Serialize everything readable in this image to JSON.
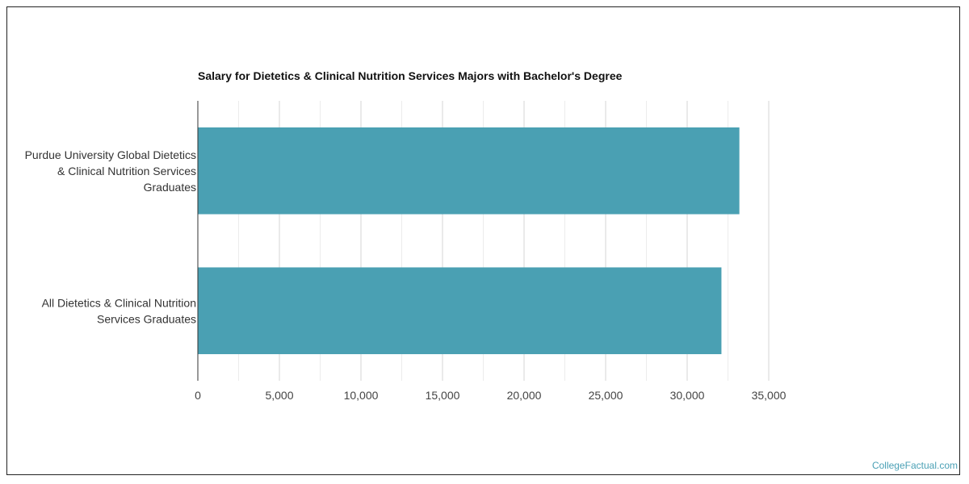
{
  "chart_data": {
    "type": "bar",
    "orientation": "horizontal",
    "title": "Salary for Dietetics & Clinical Nutrition Services Majors with Bachelor's Degree",
    "categories": [
      [
        "Purdue University Global Dietetics",
        "& Clinical Nutrition Services",
        "Graduates"
      ],
      [
        "All Dietetics & Clinical Nutrition",
        "Services Graduates"
      ]
    ],
    "values": [
      33200,
      32100
    ],
    "xlim": [
      0,
      35000
    ],
    "ticks": [
      "0",
      "5,000",
      "10,000",
      "15,000",
      "20,000",
      "25,000",
      "30,000",
      "35,000"
    ],
    "grid": true,
    "bar_color": "#4aa0b3"
  },
  "watermark": "CollegeFactual.com"
}
